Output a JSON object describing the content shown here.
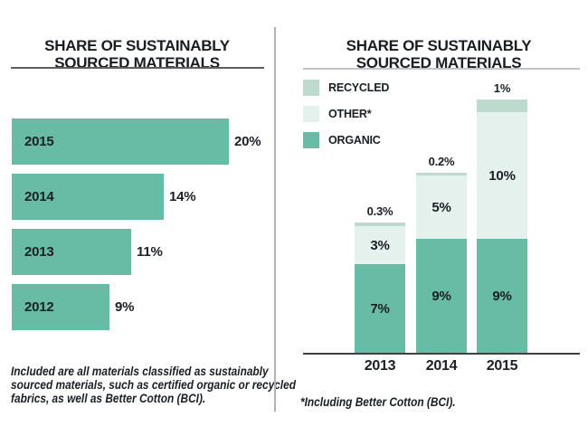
{
  "page": {
    "background": "#ffffff"
  },
  "colors": {
    "organic": "#68bba4",
    "other": "#e4f1ec",
    "recycled": "#bcdbce",
    "text": "#1a1f26",
    "rule_dark": "#5e5e5e",
    "rule_light": "#c5c5c5",
    "axis": "#404040",
    "divider": "#b2b2b2"
  },
  "chart_data": [
    {
      "type": "bar",
      "orientation": "horizontal",
      "title": "SHARE OF SUSTAINABLY SOURCED MATERIALS",
      "title_lines": [
        "SHARE OF SUSTAINABLY",
        "SOURCED MATERIALS"
      ],
      "categories": [
        "2015",
        "2014",
        "2013",
        "2012"
      ],
      "values": [
        20,
        14,
        11,
        9
      ],
      "value_labels": [
        "20%",
        "14%",
        "11%",
        "9%"
      ],
      "xlim": [
        0,
        20
      ],
      "grid": false,
      "bar_color": "#68bba4",
      "footnote": "Included are all materials classified as sustainably sourced materials, such as certified organic or recycled fabrics, as well as Better Cotton (BCI).",
      "footnote_lines": [
        "Included are all materials classified as sustainably",
        "sourced materials, such as certified organic or recycled",
        "fabrics, as well as Better Cotton (BCI)."
      ]
    },
    {
      "type": "bar",
      "subtype": "stacked",
      "orientation": "vertical",
      "title": "SHARE OF SUSTAINABLY SOURCED MATERIALS",
      "title_lines": [
        "SHARE OF SUSTAINABLY",
        "SOURCED MATERIALS"
      ],
      "categories": [
        "2013",
        "2014",
        "2015"
      ],
      "series": [
        {
          "name": "ORGANIC",
          "color": "#68bba4",
          "values": [
            7,
            9,
            9
          ],
          "labels": [
            "7%",
            "9%",
            "9%"
          ]
        },
        {
          "name": "OTHER*",
          "color": "#e4f1ec",
          "values": [
            3,
            5,
            10
          ],
          "labels": [
            "3%",
            "5%",
            "10%"
          ]
        },
        {
          "name": "RECYCLED",
          "color": "#bcdbce",
          "values": [
            0.3,
            0.2,
            1
          ],
          "labels": [
            "0.3%",
            "0.2%",
            "1%"
          ]
        }
      ],
      "totals_labels": [
        "0.3%",
        "0.2%",
        "1%"
      ],
      "legend": [
        "RECYCLED",
        "OTHER*",
        "ORGANIC"
      ],
      "legend_position": "top-left",
      "ylim": [
        0,
        21
      ],
      "grid": false,
      "footnote": "*Including Better Cotton (BCI)."
    }
  ]
}
